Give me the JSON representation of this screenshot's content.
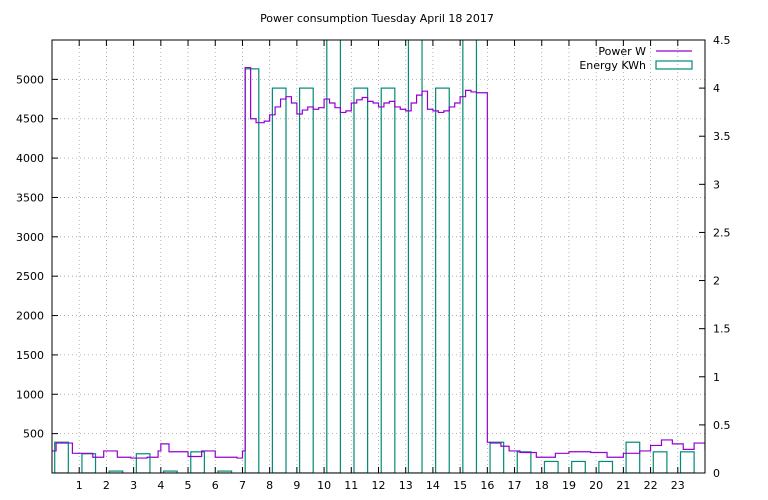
{
  "chart_data": {
    "type": "bar",
    "title": "Power consumption Tuesday April 18 2017",
    "xlabel": "",
    "ylabel": "",
    "xlim": [
      0,
      24
    ],
    "ylim": [
      0,
      5500
    ],
    "y2lim": [
      0,
      4.5
    ],
    "x_ticks": [
      1,
      2,
      3,
      4,
      5,
      6,
      7,
      8,
      9,
      10,
      11,
      12,
      13,
      14,
      15,
      16,
      17,
      18,
      19,
      20,
      21,
      22,
      23
    ],
    "y_ticks": [
      500,
      1000,
      1500,
      2000,
      2500,
      3000,
      3500,
      4000,
      4500,
      5000
    ],
    "y2_ticks": [
      0,
      0.5,
      1,
      1.5,
      2,
      2.5,
      3,
      3.5,
      4,
      4.5
    ],
    "grid": true,
    "legend": "top-right",
    "series": [
      {
        "name": "Power W",
        "axis": "left",
        "color": "#9400d3",
        "style": "step",
        "x": [
          0,
          0.15,
          0.75,
          1.5,
          1.9,
          2.4,
          2.9,
          3.5,
          3.9,
          4.0,
          4.3,
          5.0,
          5.5,
          6.0,
          6.8,
          7.0,
          7.1,
          7.3,
          7.5,
          7.8,
          8.0,
          8.2,
          8.4,
          8.6,
          8.8,
          9.0,
          9.2,
          9.4,
          9.6,
          9.8,
          10.0,
          10.2,
          10.4,
          10.6,
          10.8,
          11.0,
          11.2,
          11.4,
          11.6,
          11.8,
          12.0,
          12.2,
          12.4,
          12.6,
          12.8,
          13.0,
          13.2,
          13.4,
          13.6,
          13.8,
          14.0,
          14.2,
          14.4,
          14.6,
          14.8,
          15.0,
          15.2,
          15.4,
          15.6,
          16.0,
          16.1,
          16.5,
          16.8,
          17.2,
          17.8,
          18.5,
          19.0,
          19.8,
          20.4,
          21.0,
          21.6,
          22.0,
          22.4,
          22.8,
          23.2,
          23.6,
          24.0
        ],
        "y": [
          280,
          380,
          250,
          200,
          280,
          200,
          190,
          200,
          280,
          370,
          270,
          210,
          280,
          200,
          190,
          280,
          5150,
          4500,
          4450,
          4470,
          4550,
          4650,
          4750,
          4780,
          4700,
          4560,
          4610,
          4650,
          4620,
          4640,
          4750,
          4700,
          4640,
          4580,
          4600,
          4700,
          4740,
          4770,
          4720,
          4700,
          4650,
          4700,
          4720,
          4650,
          4620,
          4600,
          4700,
          4800,
          4850,
          4620,
          4600,
          4580,
          4600,
          4650,
          4700,
          4780,
          4860,
          4840,
          4830,
          390,
          380,
          340,
          280,
          260,
          200,
          250,
          270,
          260,
          200,
          250,
          280,
          350,
          420,
          370,
          300,
          380,
          300
        ]
      },
      {
        "name": "Energy KWh",
        "axis": "right",
        "color": "#008b74",
        "style": "boxes",
        "x": [
          0,
          1,
          2,
          3,
          4,
          5,
          6,
          7,
          8,
          9,
          10,
          11,
          12,
          13,
          14,
          15,
          16,
          17,
          18,
          19,
          20,
          21,
          22,
          23
        ],
        "y": [
          0.32,
          0.2,
          0.02,
          0.2,
          0.02,
          0.22,
          0.02,
          4.2,
          4.0,
          4.0,
          4.6,
          4.0,
          4.0,
          4.6,
          4.0,
          4.6,
          0.32,
          0.22,
          0.12,
          0.12,
          0.12,
          0.32,
          0.22,
          0.22
        ]
      }
    ]
  }
}
